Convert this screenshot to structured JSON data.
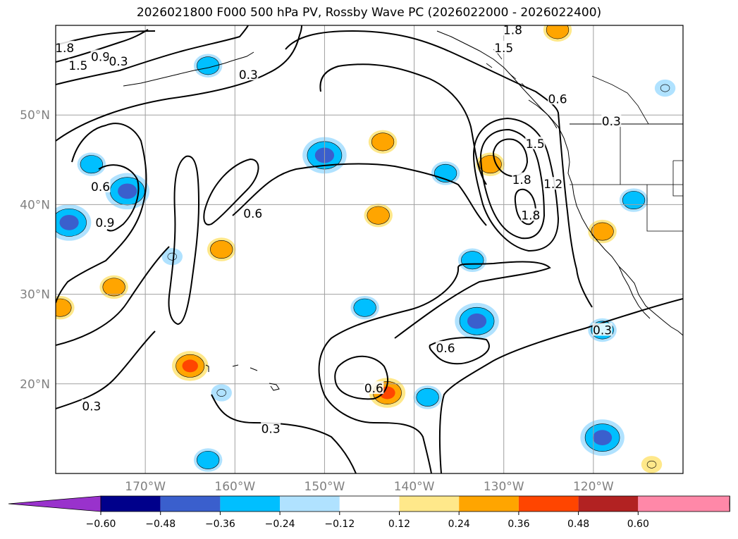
{
  "title": "2026021800 F000 500 hPa PV, Rossby Wave PC (2026022000 - 2026022400)",
  "map": {
    "lon_range": [
      -180,
      -110
    ],
    "lat_range": [
      10,
      60
    ],
    "lat_ticks": [
      {
        "lat": 50,
        "label": "50°N"
      },
      {
        "lat": 40,
        "label": "40°N"
      },
      {
        "lat": 30,
        "label": "30°N"
      },
      {
        "lat": 20,
        "label": "20°N"
      }
    ],
    "lon_ticks": [
      {
        "lon": -170,
        "label": "170°W"
      },
      {
        "lon": -160,
        "label": "160°W"
      },
      {
        "lon": -150,
        "label": "150°W"
      },
      {
        "lon": -140,
        "label": "140°W"
      },
      {
        "lon": -130,
        "label": "130°W"
      },
      {
        "lon": -120,
        "label": "120°W"
      }
    ],
    "gridlines": true,
    "contour_levels_pv": [
      0.3,
      0.6,
      0.9,
      1.2,
      1.5,
      1.8
    ],
    "contour_labels": [
      {
        "text": "1.8",
        "lon": -179,
        "lat": 57.5
      },
      {
        "text": "1.5",
        "lon": -177.5,
        "lat": 55.5
      },
      {
        "text": "0.9",
        "lon": -175,
        "lat": 56.5
      },
      {
        "text": "0.3",
        "lon": -173,
        "lat": 56
      },
      {
        "text": "0.3",
        "lon": -158.5,
        "lat": 54.5
      },
      {
        "text": "1.8",
        "lon": -129,
        "lat": 59.5
      },
      {
        "text": "1.5",
        "lon": -130,
        "lat": 57.5
      },
      {
        "text": "0.6",
        "lon": -124,
        "lat": 51.8
      },
      {
        "text": "0.3",
        "lon": -118,
        "lat": 49.3
      },
      {
        "text": "1.5",
        "lon": -126.5,
        "lat": 46.8
      },
      {
        "text": "1.2",
        "lon": -124.5,
        "lat": 42.3
      },
      {
        "text": "1.8",
        "lon": -128,
        "lat": 42.8
      },
      {
        "text": "1.8",
        "lon": -127,
        "lat": 38.8
      },
      {
        "text": "0.6",
        "lon": -175,
        "lat": 42
      },
      {
        "text": "0.9",
        "lon": -174.5,
        "lat": 38
      },
      {
        "text": "0.6",
        "lon": -158,
        "lat": 39
      },
      {
        "text": "0.6",
        "lon": -136.5,
        "lat": 24
      },
      {
        "text": "0.3",
        "lon": -119,
        "lat": 26
      },
      {
        "text": "0.6",
        "lon": -144.5,
        "lat": 19.5
      },
      {
        "text": "0.3",
        "lon": -176,
        "lat": 17.5
      },
      {
        "text": "0.3",
        "lon": -156,
        "lat": 15
      }
    ],
    "shaded_anomalies": [
      {
        "lon": -163,
        "lat": 55.5,
        "value": -0.24
      },
      {
        "lon": -176,
        "lat": 44.5,
        "value": -0.24
      },
      {
        "lon": -172,
        "lat": 41.5,
        "value": -0.48
      },
      {
        "lon": -178.5,
        "lat": 38,
        "value": -0.48
      },
      {
        "lon": -150,
        "lat": 45.5,
        "value": -0.48
      },
      {
        "lon": -143.5,
        "lat": 47,
        "value": 0.24
      },
      {
        "lon": -136.5,
        "lat": 43.5,
        "value": -0.24
      },
      {
        "lon": -131.5,
        "lat": 44.5,
        "value": 0.24
      },
      {
        "lon": -144,
        "lat": 38.8,
        "value": 0.24
      },
      {
        "lon": -161.5,
        "lat": 35,
        "value": 0.24
      },
      {
        "lon": -167,
        "lat": 34.2,
        "value": -0.12
      },
      {
        "lon": -173.5,
        "lat": 30.8,
        "value": 0.24
      },
      {
        "lon": -179.5,
        "lat": 28.5,
        "value": 0.24
      },
      {
        "lon": -133.5,
        "lat": 33.8,
        "value": -0.24
      },
      {
        "lon": -133,
        "lat": 27,
        "value": -0.48
      },
      {
        "lon": -145.5,
        "lat": 28.5,
        "value": -0.24
      },
      {
        "lon": -165,
        "lat": 22,
        "value": 0.36
      },
      {
        "lon": -143,
        "lat": 19,
        "value": 0.36
      },
      {
        "lon": -138.5,
        "lat": 18.5,
        "value": -0.24
      },
      {
        "lon": -161.5,
        "lat": 19,
        "value": -0.12
      },
      {
        "lon": -119,
        "lat": 26,
        "value": -0.24
      },
      {
        "lon": -119,
        "lat": 14,
        "value": -0.48
      },
      {
        "lon": -163,
        "lat": 11.5,
        "value": -0.24
      },
      {
        "lon": -115.5,
        "lat": 40.5,
        "value": -0.24
      },
      {
        "lon": -119,
        "lat": 37,
        "value": 0.24
      },
      {
        "lon": -124,
        "lat": 59.5,
        "value": 0.24
      },
      {
        "lon": -113.5,
        "lat": 11,
        "value": 0.12
      },
      {
        "lon": -112,
        "lat": 53,
        "value": -0.12
      }
    ]
  },
  "colorbar": {
    "ticks": [
      "−0.60",
      "−0.48",
      "−0.36",
      "−0.24",
      "−0.12",
      "0.12",
      "0.24",
      "0.36",
      "0.48",
      "0.60"
    ],
    "colors": [
      "#9932cc",
      "#00008b",
      "#3a5fcd",
      "#00bfff",
      "#b0e2ff",
      "#ffffff",
      "#ffe88a",
      "#ffa500",
      "#ff4500",
      "#b22222",
      "#ff88a8",
      "#ff88a8"
    ],
    "under_color": "#9932cc",
    "over_color": "#ff88a8"
  }
}
